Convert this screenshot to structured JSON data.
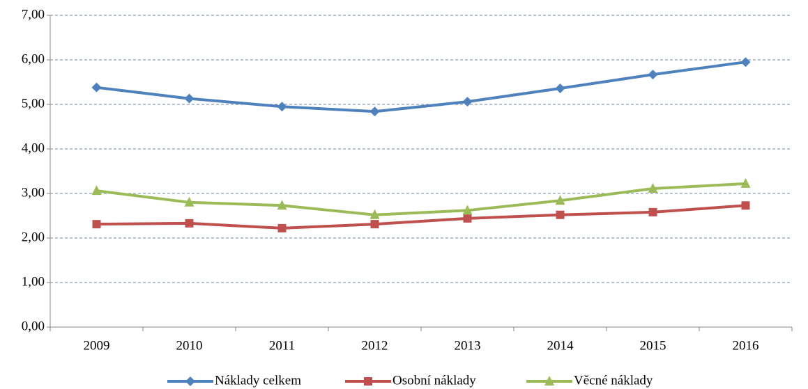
{
  "chart_data": {
    "type": "line",
    "categories": [
      "2009",
      "2010",
      "2011",
      "2012",
      "2013",
      "2014",
      "2015",
      "2016"
    ],
    "series": [
      {
        "name": "Náklady celkem",
        "color": "#4f81bd",
        "marker": "diamond",
        "values": [
          5.38,
          5.13,
          4.95,
          4.84,
          5.06,
          5.36,
          5.67,
          5.95
        ]
      },
      {
        "name": "Osobní náklady",
        "color": "#c0504d",
        "marker": "square",
        "values": [
          2.31,
          2.33,
          2.22,
          2.31,
          2.44,
          2.52,
          2.58,
          2.73
        ]
      },
      {
        "name": "Věcné náklady",
        "color": "#9bbb59",
        "marker": "triangle",
        "values": [
          3.06,
          2.8,
          2.73,
          2.52,
          2.62,
          2.84,
          3.11,
          3.22
        ]
      }
    ],
    "ylim": [
      0,
      7
    ],
    "yticks": [
      {
        "value": 0,
        "label": "0,00"
      },
      {
        "value": 1,
        "label": "1,00"
      },
      {
        "value": 2,
        "label": "2,00"
      },
      {
        "value": 3,
        "label": "3,00"
      },
      {
        "value": 4,
        "label": "4,00"
      },
      {
        "value": 5,
        "label": "5,00"
      },
      {
        "value": 6,
        "label": "6,00"
      },
      {
        "value": 7,
        "label": "7,00"
      }
    ],
    "grid": true,
    "legend": "bottom"
  }
}
